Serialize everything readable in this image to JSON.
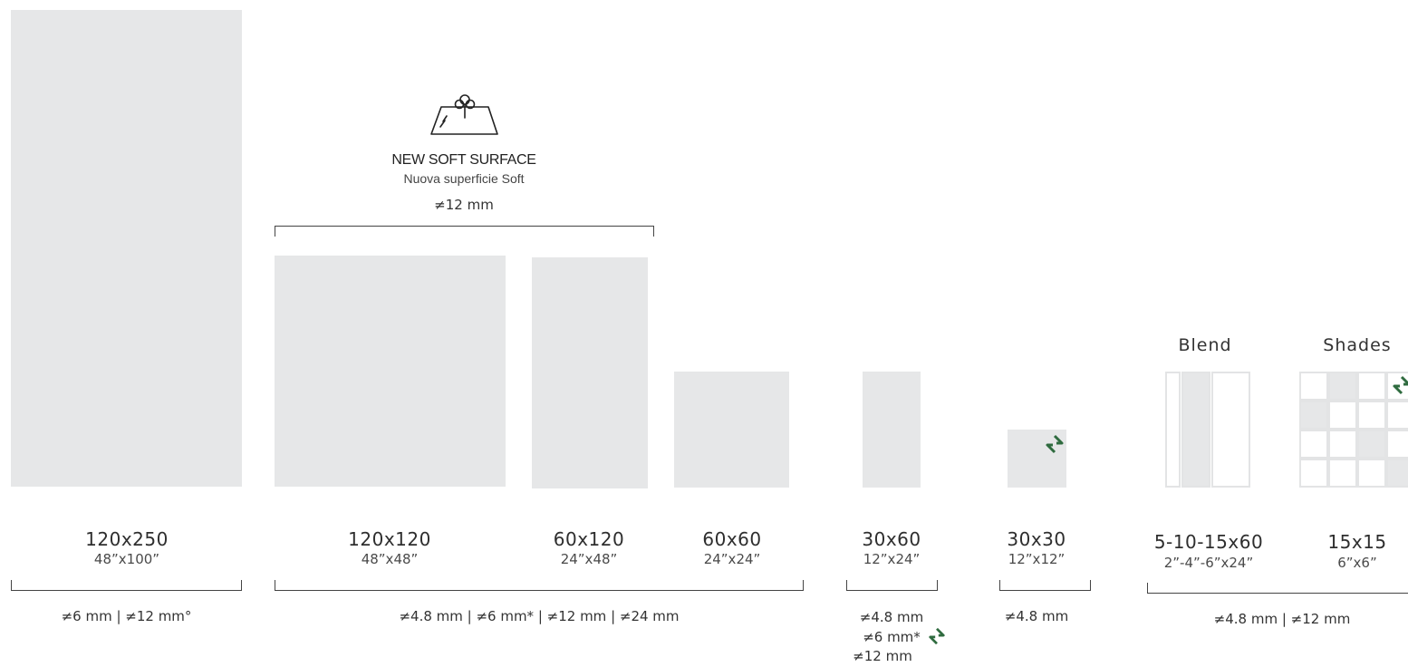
{
  "colors": {
    "tile": "#e6e7e8",
    "eco_icon": "#2f6b3f",
    "line": "#444444"
  },
  "soft_surface": {
    "icon": "soft-surface-icon",
    "title": "NEW SOFT SURFACE",
    "subtitle": "Nuova superficie Soft",
    "thickness": "≠12 mm"
  },
  "formats": {
    "f120x250": {
      "size": "120x250",
      "inches": "48”x100”"
    },
    "f120x120": {
      "size": "120x120",
      "inches": "48”x48”"
    },
    "f60x120": {
      "size": "60x120",
      "inches": "24”x48”"
    },
    "f60x60": {
      "size": "60x60",
      "inches": "24”x24”"
    },
    "f30x60": {
      "size": "30x60",
      "inches": "12”x24”"
    },
    "f30x30": {
      "size": "30x30",
      "inches": "12”x12”"
    },
    "blend": {
      "label": "Blend",
      "size": "5-10-15x60",
      "inches": "2”-4”-6”x24”"
    },
    "shades": {
      "label": "Shades",
      "size": "15x15",
      "inches": "6”x6”"
    }
  },
  "thickness": {
    "g1": "≠6 mm | ≠12 mm°",
    "g2": "≠4.8 mm | ≠6 mm* | ≠12 mm | ≠24 mm",
    "g3": [
      "≠4.8 mm",
      "≠6 mm*",
      "≠12 mm"
    ],
    "g4": "≠4.8 mm",
    "g5": "≠4.8 mm | ≠12 mm"
  },
  "icons": [
    "soft-surface-icon",
    "eco-leaf-icon"
  ]
}
